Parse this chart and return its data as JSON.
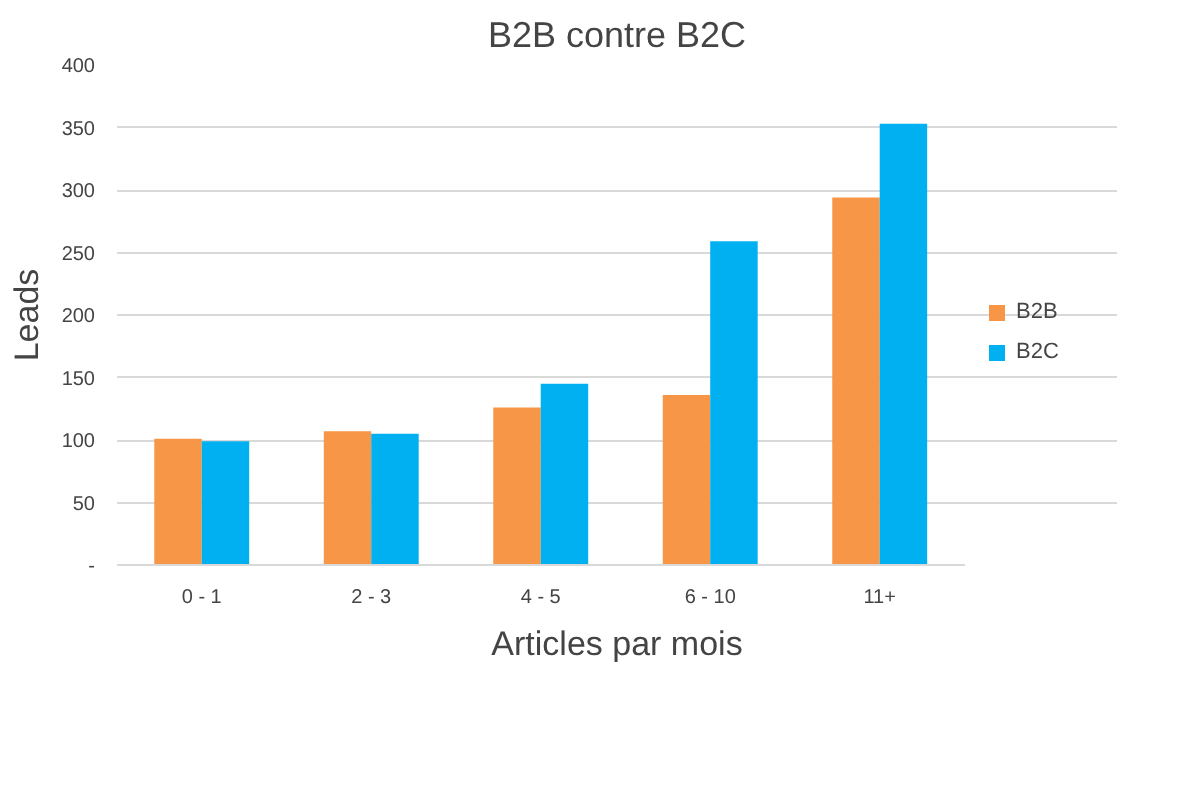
{
  "chart_data": {
    "type": "bar",
    "title": "B2B contre B2C",
    "xlabel": "Articles par mois",
    "ylabel": "Leads",
    "categories": [
      "0 - 1",
      "2 - 3",
      "4 - 5",
      "6 - 10",
      "11+"
    ],
    "series": [
      {
        "name": "B2B",
        "color": "#f79646",
        "values": [
          101,
          107,
          126,
          136,
          294
        ]
      },
      {
        "name": "B2C",
        "color": "#00b0f0",
        "values": [
          99,
          105,
          145,
          259,
          353
        ]
      }
    ],
    "ylim": [
      0,
      400
    ],
    "yticks": [
      {
        "value": 0,
        "label": "-"
      },
      50,
      100,
      150,
      200,
      250,
      300,
      350,
      400
    ],
    "grid": "y",
    "legend": "right"
  }
}
